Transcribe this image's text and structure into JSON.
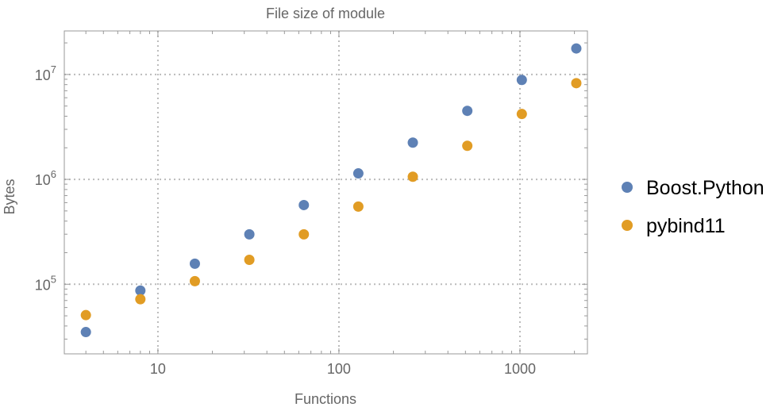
{
  "chart_data": {
    "type": "scatter",
    "title": "File size of module",
    "xlabel": "Functions",
    "ylabel": "Bytes",
    "xscale": "log",
    "yscale": "log",
    "xlim": [
      3.04,
      2360
    ],
    "ylim": [
      21700,
      26000000
    ],
    "grid": true,
    "legend_position": "right",
    "x_ticks": [
      {
        "value": 10,
        "label": "10"
      },
      {
        "value": 100,
        "label": "100"
      },
      {
        "value": 1000,
        "label": "1000"
      }
    ],
    "y_ticks": [
      {
        "value": 100000,
        "base": "10",
        "exp": "5"
      },
      {
        "value": 1000000,
        "base": "10",
        "exp": "6"
      },
      {
        "value": 10000000,
        "base": "10",
        "exp": "7"
      }
    ],
    "x": [
      4,
      8,
      16,
      32,
      64,
      128,
      256,
      512,
      1024,
      2048
    ],
    "series": [
      {
        "name": "Boost.Python",
        "color": "#5e81b5",
        "values": [
          35000,
          87000,
          157000,
          299000,
          569000,
          1140000,
          2240000,
          4500000,
          8860000,
          17700000
        ]
      },
      {
        "name": "pybind11",
        "color": "#e19c24",
        "values": [
          50800,
          72000,
          107000,
          171000,
          299000,
          550000,
          1060000,
          2090000,
          4200000,
          8260000
        ]
      }
    ]
  }
}
